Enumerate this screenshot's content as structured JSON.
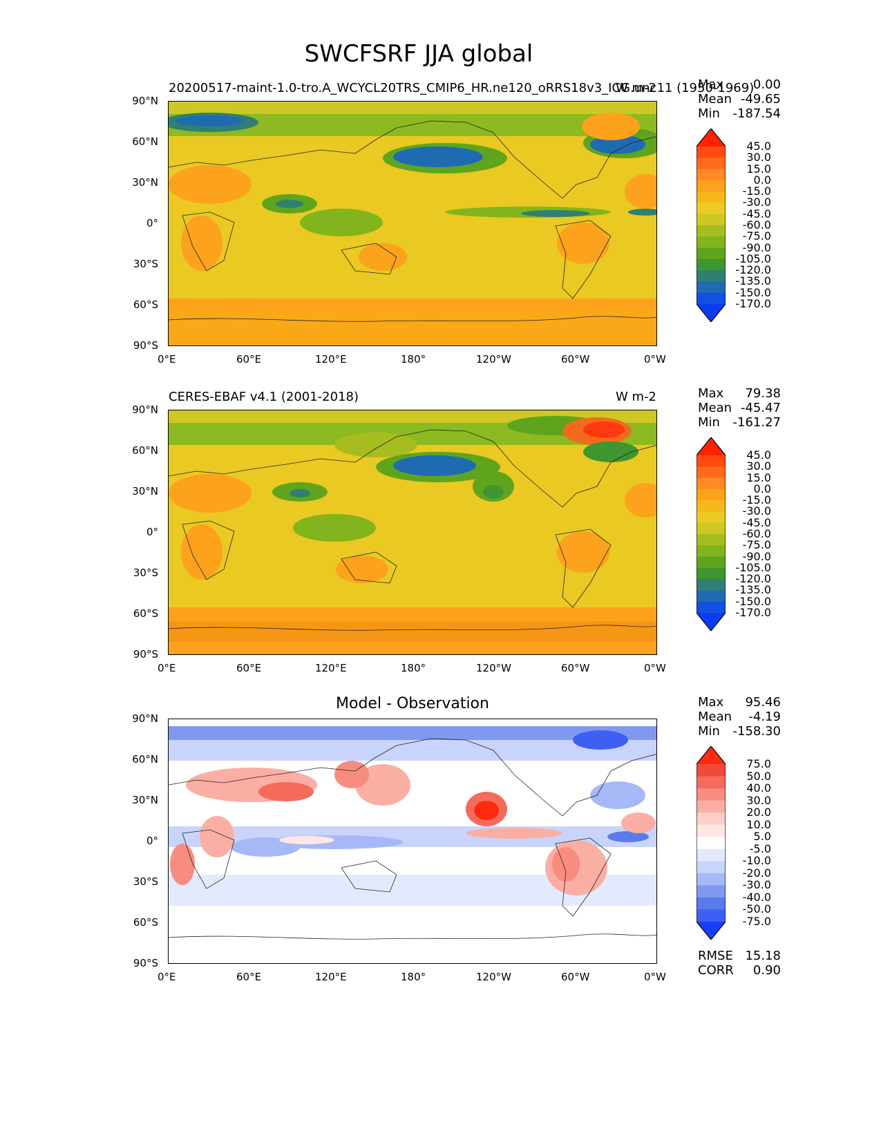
{
  "figure": {
    "title": "SWCFSRF JJA global"
  },
  "x_ticks": [
    "0°E",
    "60°E",
    "120°E",
    "180°",
    "120°W",
    "60°W",
    "0°W"
  ],
  "y_ticks": [
    "90°N",
    "60°N",
    "30°N",
    "0°",
    "30°S",
    "60°S",
    "90°S"
  ],
  "panels": [
    {
      "left_title": "20200517-maint-1.0-tro.A_WCYCL20TRS_CMIP6_HR.ne120_oRRS18v3_ICG.unc11 (1950-1969)",
      "center_title": "",
      "right_title": "W m-2",
      "stats": {
        "max_label": "Max",
        "max": "0.00",
        "mean_label": "Mean",
        "mean": "-49.65",
        "min_label": "Min",
        "min": "-187.54"
      },
      "colorbar": {
        "labels": [
          "45.0",
          "30.0",
          "15.0",
          "0.0",
          "-15.0",
          "-30.0",
          "-45.0",
          "-60.0",
          "-75.0",
          "-90.0",
          "-105.0",
          "-120.0",
          "-135.0",
          "-150.0",
          "-170.0"
        ],
        "colors": [
          "#ff2200",
          "#ff4a12",
          "#ff6a1c",
          "#ff8a22",
          "#fca21c",
          "#f6b81a",
          "#ecca22",
          "#cfc723",
          "#a7bd1f",
          "#82b41d",
          "#5ea51d",
          "#3f9530",
          "#2f8070",
          "#1f6bb2",
          "#1150e0",
          "#0a3df2"
        ]
      },
      "extra_stats": null
    },
    {
      "left_title": "CERES-EBAF v4.1 (2001-2018)",
      "center_title": "",
      "right_title": "W m-2",
      "stats": {
        "max_label": "Max",
        "max": "79.38",
        "mean_label": "Mean",
        "mean": "-45.47",
        "min_label": "Min",
        "min": "-161.27"
      },
      "colorbar": {
        "labels": [
          "45.0",
          "30.0",
          "15.0",
          "0.0",
          "-15.0",
          "-30.0",
          "-45.0",
          "-60.0",
          "-75.0",
          "-90.0",
          "-105.0",
          "-120.0",
          "-135.0",
          "-150.0",
          "-170.0"
        ],
        "colors": [
          "#ff2200",
          "#ff4a12",
          "#ff6a1c",
          "#ff8a22",
          "#fca21c",
          "#f6b81a",
          "#ecca22",
          "#cfc723",
          "#a7bd1f",
          "#82b41d",
          "#5ea51d",
          "#3f9530",
          "#2f8070",
          "#1f6bb2",
          "#1150e0",
          "#0a3df2"
        ]
      },
      "extra_stats": null
    },
    {
      "left_title": "",
      "center_title": "Model - Observation",
      "right_title": "",
      "stats": {
        "max_label": "Max",
        "max": "95.46",
        "mean_label": "Mean",
        "mean": "-4.19",
        "min_label": "Min",
        "min": "-158.30"
      },
      "colorbar": {
        "labels": [
          "75.0",
          "50.0",
          "40.0",
          "30.0",
          "20.0",
          "10.0",
          "5.0",
          "-5.0",
          "-10.0",
          "-20.0",
          "-30.0",
          "-40.0",
          "-50.0",
          "-75.0"
        ],
        "colors": [
          "#ff2a10",
          "#f04a3a",
          "#f46a5c",
          "#f88c80",
          "#fbaea4",
          "#fdd0c8",
          "#fde8e4",
          "#ffffff",
          "#e4eafd",
          "#c8d4fb",
          "#a6b8f6",
          "#8099f0",
          "#5a7bec",
          "#3d5ff2",
          "#1a3df8"
        ]
      },
      "extra_stats": {
        "rmse_label": "RMSE",
        "rmse": "15.18",
        "corr_label": "CORR",
        "corr": "0.90"
      }
    }
  ]
}
